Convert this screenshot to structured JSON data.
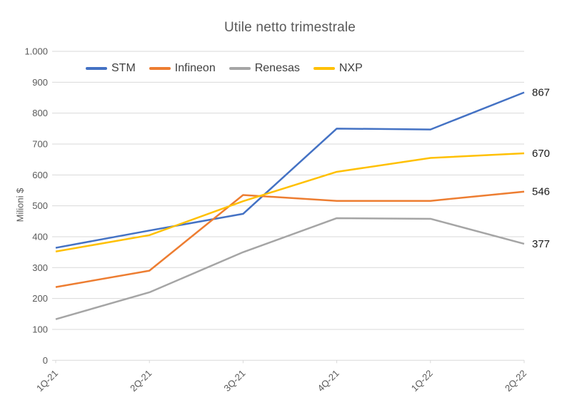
{
  "chart_data": {
    "type": "line",
    "title": "Utile netto trimestrale",
    "ylabel": "Milioni $",
    "xlabel": "",
    "categories": [
      "1Q-21",
      "2Q-21",
      "3Q-21",
      "4Q-21",
      "1Q-22",
      "2Q-22"
    ],
    "series": [
      {
        "name": "STM",
        "color": "#4472C4",
        "values": [
          364,
          420,
          474,
          750,
          747,
          867
        ],
        "end_label": "867"
      },
      {
        "name": "Infineon",
        "color": "#ED7D31",
        "values": [
          237,
          290,
          535,
          516,
          516,
          546
        ],
        "end_label": "546"
      },
      {
        "name": "Renesas",
        "color": "#A5A5A5",
        "values": [
          133,
          220,
          350,
          460,
          458,
          377
        ],
        "end_label": "377"
      },
      {
        "name": "NXP",
        "color": "#FFC000",
        "values": [
          352,
          405,
          515,
          610,
          655,
          670
        ],
        "end_label": "670"
      }
    ],
    "ylim": [
      0,
      1000
    ],
    "ytick_step": 100,
    "ytick_labels": [
      "0",
      "100",
      "200",
      "300",
      "400",
      "500",
      "600",
      "700",
      "800",
      "900",
      "1.000"
    ],
    "grid": true,
    "legend_position": "top"
  },
  "colors": {
    "grid": "#D9D9D9",
    "axis_text": "#595959",
    "title_text": "#595959",
    "end_label_text": "#1A1A1A",
    "background": "#FFFFFF"
  }
}
